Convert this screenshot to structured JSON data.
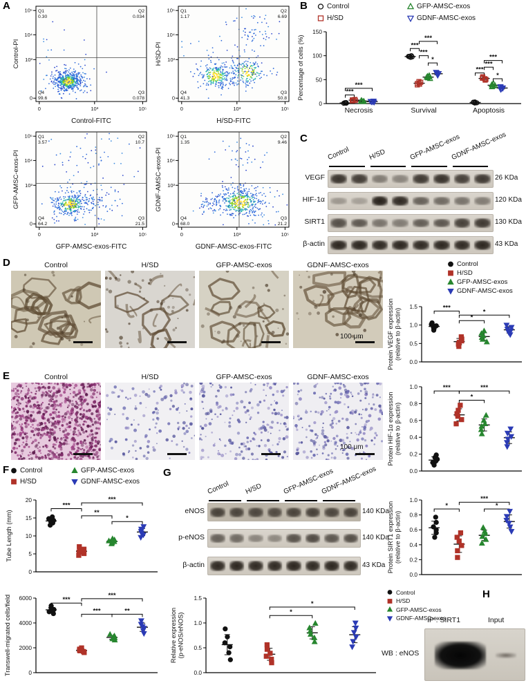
{
  "groups": [
    {
      "label": "Control",
      "color": "#111111",
      "marker": "circle"
    },
    {
      "label": "H/SD",
      "color": "#b03228",
      "marker": "square"
    },
    {
      "label": "GFP-AMSC-exos",
      "color": "#27862f",
      "marker": "triangle-up"
    },
    {
      "label": "GDNF-AMSC-exos",
      "color": "#2b3bb5",
      "marker": "triangle-down"
    }
  ],
  "panelA": {
    "label": "A",
    "yticks": [
      "0",
      "10³",
      "10⁴",
      "10⁵"
    ],
    "xticks": [
      "0",
      "10³",
      "10⁵"
    ],
    "plots": [
      {
        "ylabel": "Control-PI",
        "xlabel": "Control-FITC",
        "quadrants": [
          {
            "name": "Q1",
            "value": "0.30"
          },
          {
            "name": "Q2",
            "value": "0.034"
          },
          {
            "name": "Q3",
            "value": "0.078"
          },
          {
            "name": "Q4",
            "value": "99.6"
          }
        ],
        "clusters": [
          [
            0.29,
            0.21,
            0.055,
            0.045,
            380,
            1
          ],
          [
            0.29,
            0.21,
            0.11,
            0.09,
            140,
            0
          ],
          [
            0.27,
            0.55,
            0.13,
            0.2,
            18,
            0
          ]
        ]
      },
      {
        "ylabel": "H/SD-PI",
        "xlabel": "H/SD-FITC",
        "quadrants": [
          {
            "name": "Q1",
            "value": "1.17"
          },
          {
            "name": "Q2",
            "value": "6.69"
          },
          {
            "name": "Q3",
            "value": "50.8"
          },
          {
            "name": "Q4",
            "value": "41.3"
          }
        ],
        "clusters": [
          [
            0.33,
            0.27,
            0.07,
            0.06,
            200,
            1
          ],
          [
            0.63,
            0.31,
            0.08,
            0.07,
            150,
            1
          ],
          [
            0.48,
            0.29,
            0.18,
            0.09,
            80,
            0
          ],
          [
            0.68,
            0.72,
            0.12,
            0.13,
            55,
            0
          ],
          [
            0.35,
            0.5,
            0.2,
            0.18,
            35,
            0
          ]
        ]
      },
      {
        "ylabel": "GFP-AMSC-exos-PI",
        "xlabel": "GFP-AMSC-exos-FITC",
        "quadrants": [
          {
            "name": "Q1",
            "value": "3.57"
          },
          {
            "name": "Q2",
            "value": "10.7"
          },
          {
            "name": "Q3",
            "value": "21.5"
          },
          {
            "name": "Q4",
            "value": "64.2"
          }
        ],
        "clusters": [
          [
            0.31,
            0.24,
            0.07,
            0.055,
            240,
            1
          ],
          [
            0.52,
            0.28,
            0.13,
            0.08,
            90,
            0
          ],
          [
            0.45,
            0.7,
            0.22,
            0.17,
            60,
            0
          ],
          [
            0.31,
            0.24,
            0.13,
            0.1,
            80,
            0
          ]
        ]
      },
      {
        "ylabel": "GDNF-AMSC-exos-PI",
        "xlabel": "GDNF-AMSC-exos-FITC",
        "quadrants": [
          {
            "name": "Q1",
            "value": "1.35"
          },
          {
            "name": "Q2",
            "value": "9.46"
          },
          {
            "name": "Q3",
            "value": "21.2"
          },
          {
            "name": "Q4",
            "value": "68.0"
          }
        ],
        "clusters": [
          [
            0.56,
            0.26,
            0.1,
            0.07,
            330,
            1
          ],
          [
            0.56,
            0.26,
            0.18,
            0.12,
            110,
            0
          ],
          [
            0.3,
            0.24,
            0.07,
            0.05,
            45,
            0
          ],
          [
            0.6,
            0.73,
            0.14,
            0.12,
            40,
            0
          ]
        ]
      }
    ]
  },
  "panelB": {
    "label": "B"
  },
  "panelC": {
    "label": "C",
    "col_headers": [
      "Control",
      "H/SD",
      "GFP-AMSC-exos",
      "GDNF-AMSC-exos"
    ],
    "rows": [
      {
        "name": "VEGF",
        "kda": "26 KDa",
        "bands": [
          0.85,
          0.8,
          0.45,
          0.4,
          0.82,
          0.86,
          0.78,
          0.82
        ]
      },
      {
        "name": "HIF-1α",
        "kda": "120 KDa",
        "bands": [
          0.3,
          0.25,
          0.95,
          0.9,
          0.6,
          0.55,
          0.5,
          0.45
        ]
      },
      {
        "name": "SIRT1",
        "kda": "130 KDa",
        "bands": [
          0.7,
          0.65,
          0.5,
          0.45,
          0.62,
          0.66,
          0.78,
          0.82
        ]
      },
      {
        "name": "β-actin",
        "kda": "43 KDa",
        "bands": [
          0.92,
          0.92,
          0.9,
          0.92,
          0.9,
          0.92,
          0.9,
          0.92
        ]
      }
    ]
  },
  "panelD": {
    "label": "D",
    "image_titles": [
      "Control",
      "H/SD",
      "GFP-AMSC-exos",
      "GDNF-AMSC-exos"
    ],
    "scalebar": "100 μm"
  },
  "panelE": {
    "label": "E",
    "image_titles": [
      "Control",
      "H/SD",
      "GFP-AMSC-exos",
      "GDNF-AMSC-exos"
    ],
    "scalebar": "100 μm"
  },
  "panelF": {
    "label": "F"
  },
  "panelG": {
    "label": "G",
    "col_headers": [
      "Control",
      "H/SD",
      "GFP-AMSC-exos",
      "GDNF-AMSC-exos"
    ],
    "rows": [
      {
        "name": "eNOS",
        "kda": "140 KDa",
        "bands": [
          0.75,
          0.72,
          0.7,
          0.68,
          0.74,
          0.76,
          0.72,
          0.74
        ]
      },
      {
        "name": "p-eNOS",
        "kda": "140 KDa",
        "bands": [
          0.6,
          0.55,
          0.4,
          0.38,
          0.68,
          0.72,
          0.66,
          0.7
        ]
      },
      {
        "name": "β-actin",
        "kda": "43 KDa",
        "bands": [
          0.9,
          0.92,
          0.9,
          0.9,
          0.92,
          0.9,
          0.92,
          0.9
        ]
      }
    ]
  },
  "panelH": {
    "label": "H",
    "ip_label": "IP : SIRT1",
    "input_label": "Input",
    "wb_label": "WB : eNOS"
  },
  "chart_data": {
    "percentage": {
      "type": "scatter",
      "ylabel": [
        "Percentage of cells (%)"
      ],
      "ylim": [
        0,
        150
      ],
      "yticks": [
        "0",
        "50",
        "100",
        "150"
      ],
      "categories": [
        "Necrosis",
        "Survival",
        "Apoptosis"
      ],
      "series": [
        {
          "name": "Control",
          "values": [
            [
              0.6,
              0.9,
              1.1,
              1.4,
              1.8,
              2.2
            ],
            [
              96.5,
              97.5,
              98,
              98.5,
              99,
              100
            ],
            [
              1.2,
              1.6,
              2,
              2.4,
              2.9,
              3.4
            ]
          ]
        },
        {
          "name": "H/SD",
          "values": [
            [
              5.8,
              6.4,
              6.9,
              7.3,
              7.9,
              8.6
            ],
            [
              39,
              40.5,
              42,
              43,
              44.5,
              46
            ],
            [
              49,
              50.5,
              52,
              53,
              54.5,
              56
            ]
          ]
        },
        {
          "name": "GFP-AMSC-exos",
          "values": [
            [
              3.9,
              4.4,
              4.9,
              5.3,
              5.8,
              6.4
            ],
            [
              52,
              53.5,
              55,
              56,
              57,
              58.5
            ],
            [
              35,
              36.5,
              38,
              39,
              40,
              41.5
            ]
          ]
        },
        {
          "name": "GDNF-AMSC-exos",
          "values": [
            [
              2.9,
              3.4,
              3.9,
              4.3,
              4.8,
              5.4
            ],
            [
              59,
              60.5,
              62,
              63,
              64,
              65.5
            ],
            [
              29.5,
              31,
              32,
              33,
              34,
              35.5
            ]
          ]
        }
      ],
      "sig": [
        {
          "cat": 0,
          "a": 0,
          "b": 1,
          "label": "***",
          "y": 18
        },
        {
          "cat": 0,
          "a": 0,
          "b": 3,
          "label": "***",
          "y": 32
        },
        {
          "cat": 1,
          "a": 0,
          "b": 1,
          "label": "***",
          "y": 115
        },
        {
          "cat": 1,
          "a": 1,
          "b": 3,
          "label": "***",
          "y": 130
        },
        {
          "cat": 1,
          "a": 1,
          "b": 2,
          "label": "***",
          "y": 100
        },
        {
          "cat": 1,
          "a": 2,
          "b": 3,
          "label": "*",
          "y": 85
        },
        {
          "cat": 2,
          "a": 0,
          "b": 1,
          "label": "***",
          "y": 64
        },
        {
          "cat": 2,
          "a": 1,
          "b": 2,
          "label": "***",
          "y": 76
        },
        {
          "cat": 2,
          "a": 1,
          "b": 3,
          "label": "***",
          "y": 90
        },
        {
          "cat": 2,
          "a": 2,
          "b": 3,
          "label": "*",
          "y": 52
        }
      ]
    },
    "vegf": {
      "type": "scatter",
      "ylabel": [
        "Protein VEGF expression",
        "(relative to β-actin)"
      ],
      "ylim": [
        0,
        1.5
      ],
      "yticks": [
        "0.0",
        "0.5",
        "1.0",
        "1.5"
      ],
      "series": [
        {
          "name": "Control",
          "values": [
            0.86,
            0.91,
            0.95,
            0.98,
            1.02,
            1.06
          ]
        },
        {
          "name": "H/SD",
          "values": [
            0.42,
            0.48,
            0.53,
            0.57,
            0.62,
            0.68
          ]
        },
        {
          "name": "GFP-AMSC-exos",
          "values": [
            0.54,
            0.61,
            0.66,
            0.71,
            0.77,
            0.84
          ]
        },
        {
          "name": "GDNF-AMSC-exos",
          "values": [
            0.74,
            0.8,
            0.85,
            0.89,
            0.94,
            1.0
          ]
        }
      ],
      "sig": [
        {
          "a": 0,
          "b": 1,
          "label": "***",
          "y": 1.38
        },
        {
          "a": 1,
          "b": 2,
          "label": "*",
          "y": 1.12
        },
        {
          "a": 1,
          "b": 3,
          "label": "*",
          "y": 1.27
        }
      ]
    },
    "hif": {
      "type": "scatter",
      "ylabel": [
        "Protein HIF-1α expression",
        "(relative to β-actin)"
      ],
      "ylim": [
        0,
        1.0
      ],
      "yticks": [
        "0.0",
        "0.2",
        "0.4",
        "0.6",
        "0.8",
        "1.0"
      ],
      "series": [
        {
          "name": "Control",
          "values": [
            0.07,
            0.1,
            0.12,
            0.14,
            0.16,
            0.19
          ]
        },
        {
          "name": "H/SD",
          "values": [
            0.56,
            0.61,
            0.65,
            0.68,
            0.72,
            0.78
          ]
        },
        {
          "name": "GFP-AMSC-exos",
          "values": [
            0.44,
            0.49,
            0.53,
            0.56,
            0.6,
            0.66
          ]
        },
        {
          "name": "GDNF-AMSC-exos",
          "values": [
            0.29,
            0.34,
            0.38,
            0.41,
            0.45,
            0.5
          ]
        }
      ],
      "sig": [
        {
          "a": 0,
          "b": 1,
          "label": "***",
          "y": 0.95
        },
        {
          "a": 1,
          "b": 2,
          "label": "*",
          "y": 0.84
        },
        {
          "a": 1,
          "b": 3,
          "label": "***",
          "y": 0.95
        }
      ]
    },
    "sirt1": {
      "type": "scatter",
      "ylabel": [
        "Protein SIRT1 expression",
        "(relative to β-actin)"
      ],
      "ylim": [
        0,
        1.0
      ],
      "yticks": [
        "0.0",
        "0.2",
        "0.4",
        "0.6",
        "0.8",
        "1.0"
      ],
      "series": [
        {
          "name": "Control",
          "values": [
            0.5,
            0.56,
            0.6,
            0.64,
            0.7,
            0.77
          ]
        },
        {
          "name": "H/SD",
          "values": [
            0.23,
            0.32,
            0.39,
            0.45,
            0.5,
            0.56
          ]
        },
        {
          "name": "GFP-AMSC-exos",
          "values": [
            0.42,
            0.47,
            0.51,
            0.55,
            0.58,
            0.63
          ]
        },
        {
          "name": "GDNF-AMSC-exos",
          "values": [
            0.58,
            0.64,
            0.69,
            0.73,
            0.78,
            0.85
          ]
        }
      ],
      "sig": [
        {
          "a": 0,
          "b": 1,
          "label": "*",
          "y": 0.88
        },
        {
          "a": 1,
          "b": 3,
          "label": "***",
          "y": 0.97
        },
        {
          "a": 2,
          "b": 3,
          "label": "*",
          "y": 0.88
        }
      ]
    },
    "tube": {
      "type": "scatter",
      "ylabel": [
        "Tube Length (mm)"
      ],
      "ylim": [
        0,
        20
      ],
      "yticks": [
        "0",
        "5",
        "10",
        "15",
        "20"
      ],
      "series": [
        {
          "name": "Control",
          "values": [
            13,
            13.6,
            14,
            14.3,
            14.8,
            15.3
          ]
        },
        {
          "name": "H/SD",
          "values": [
            4.6,
            5.1,
            5.5,
            5.9,
            6.3,
            7.0
          ]
        },
        {
          "name": "GFP-AMSC-exos",
          "values": [
            7.8,
            8.1,
            8.4,
            8.6,
            8.9,
            9.2
          ]
        },
        {
          "name": "GDNF-AMSC-exos",
          "values": [
            9.6,
            10.3,
            10.8,
            11.3,
            11.9,
            12.6
          ]
        }
      ],
      "sig": [
        {
          "a": 0,
          "b": 1,
          "label": "***",
          "y": 17.6
        },
        {
          "a": 1,
          "b": 3,
          "label": "***",
          "y": 19.2
        },
        {
          "a": 1,
          "b": 2,
          "label": "**",
          "y": 15.6
        },
        {
          "a": 2,
          "b": 3,
          "label": "*",
          "y": 14.0
        }
      ]
    },
    "transwell": {
      "type": "scatter",
      "ylabel": [
        "Transwell-migrated cells/field"
      ],
      "ylim": [
        0,
        6000
      ],
      "yticks": [
        "0",
        "2000",
        "4000",
        "6000"
      ],
      "series": [
        {
          "name": "Control",
          "values": [
            4750,
            4900,
            5000,
            5080,
            5200,
            5380
          ]
        },
        {
          "name": "H/SD",
          "values": [
            1620,
            1700,
            1760,
            1820,
            1890,
            1990
          ]
        },
        {
          "name": "GFP-AMSC-exos",
          "values": [
            2620,
            2720,
            2790,
            2860,
            2950,
            3080
          ]
        },
        {
          "name": "GDNF-AMSC-exos",
          "values": [
            3150,
            3400,
            3580,
            3720,
            3900,
            4180
          ]
        }
      ],
      "sig": [
        {
          "a": 0,
          "b": 1,
          "label": "***",
          "y": 5600
        },
        {
          "a": 1,
          "b": 3,
          "label": "***",
          "y": 5950
        },
        {
          "a": 1,
          "b": 2,
          "label": "***",
          "y": 4700
        },
        {
          "a": 2,
          "b": 3,
          "label": "**",
          "y": 4700
        }
      ]
    },
    "penos": {
      "type": "scatter",
      "ylabel": [
        "Relative expression",
        "(p-eNOS/eNOS)"
      ],
      "ylim": [
        0,
        1.5
      ],
      "yticks": [
        "0.0",
        "0.5",
        "1.0",
        "1.5"
      ],
      "series": [
        {
          "name": "Control",
          "values": [
            0.26,
            0.4,
            0.52,
            0.6,
            0.72,
            0.88
          ]
        },
        {
          "name": "H/SD",
          "values": [
            0.2,
            0.27,
            0.33,
            0.39,
            0.47,
            0.56
          ]
        },
        {
          "name": "GFP-AMSC-exos",
          "values": [
            0.62,
            0.7,
            0.77,
            0.83,
            0.9,
            0.99
          ]
        },
        {
          "name": "GDNF-AMSC-exos",
          "values": [
            0.52,
            0.63,
            0.72,
            0.81,
            0.9,
            1.0
          ]
        }
      ],
      "sig": [
        {
          "a": 1,
          "b": 2,
          "label": "*",
          "y": 1.15
        },
        {
          "a": 1,
          "b": 3,
          "label": "*",
          "y": 1.32
        }
      ]
    }
  }
}
